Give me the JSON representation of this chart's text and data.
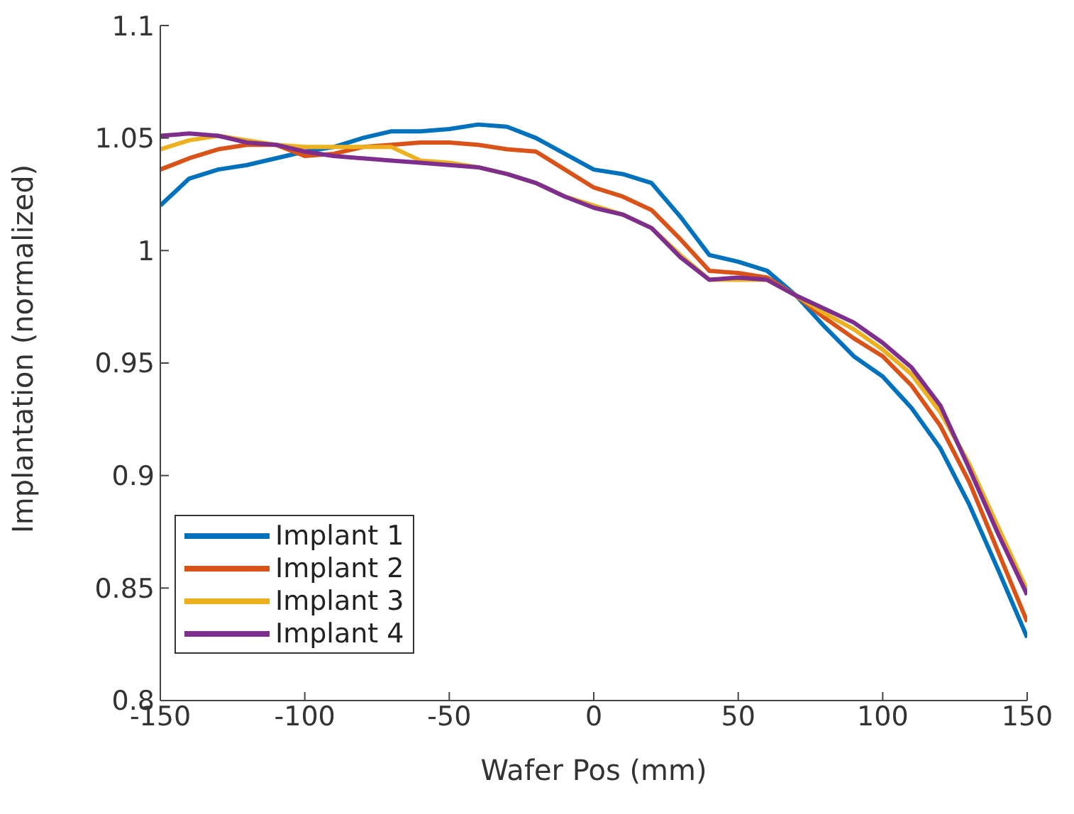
{
  "chart_data": {
    "type": "line",
    "xlabel": "Wafer Pos (mm)",
    "ylabel": "Implantation (normalized)",
    "x": [
      -150,
      -140,
      -130,
      -120,
      -110,
      -100,
      -90,
      -80,
      -70,
      -60,
      -50,
      -40,
      -30,
      -20,
      -10,
      0,
      10,
      20,
      30,
      40,
      50,
      60,
      70,
      80,
      90,
      100,
      110,
      120,
      130,
      140,
      150
    ],
    "series": [
      {
        "name": "Implant 1",
        "color": "#0072bd",
        "values": [
          1.02,
          1.032,
          1.036,
          1.038,
          1.041,
          1.044,
          1.046,
          1.05,
          1.053,
          1.053,
          1.054,
          1.056,
          1.055,
          1.05,
          1.043,
          1.036,
          1.034,
          1.03,
          1.015,
          0.998,
          0.995,
          0.991,
          0.98,
          0.966,
          0.953,
          0.944,
          0.93,
          0.912,
          0.887,
          0.858,
          0.828
        ]
      },
      {
        "name": "Implant 2",
        "color": "#d95319",
        "values": [
          1.036,
          1.041,
          1.045,
          1.047,
          1.047,
          1.042,
          1.043,
          1.046,
          1.047,
          1.048,
          1.048,
          1.047,
          1.045,
          1.044,
          1.036,
          1.028,
          1.024,
          1.018,
          1.005,
          0.991,
          0.99,
          0.988,
          0.98,
          0.97,
          0.961,
          0.953,
          0.94,
          0.922,
          0.897,
          0.866,
          0.835
        ]
      },
      {
        "name": "Implant 3",
        "color": "#edb120",
        "values": [
          1.045,
          1.049,
          1.051,
          1.049,
          1.047,
          1.046,
          1.046,
          1.046,
          1.046,
          1.04,
          1.039,
          1.037,
          1.034,
          1.03,
          1.024,
          1.02,
          1.016,
          1.01,
          0.998,
          0.987,
          0.987,
          0.987,
          0.98,
          0.972,
          0.965,
          0.956,
          0.945,
          0.928,
          0.905,
          0.877,
          0.849
        ]
      },
      {
        "name": "Implant 4",
        "color": "#7e2f8e",
        "values": [
          1.051,
          1.052,
          1.051,
          1.048,
          1.047,
          1.044,
          1.042,
          1.041,
          1.04,
          1.039,
          1.038,
          1.037,
          1.034,
          1.03,
          1.024,
          1.019,
          1.016,
          1.01,
          0.997,
          0.987,
          0.988,
          0.987,
          0.98,
          0.974,
          0.968,
          0.959,
          0.948,
          0.931,
          0.903,
          0.874,
          0.847
        ]
      }
    ],
    "xlim": [
      -150,
      150
    ],
    "xticks": [
      -150,
      -100,
      -50,
      0,
      50,
      100,
      150
    ],
    "ylim": [
      0.8,
      1.1
    ],
    "yticks": [
      0.8,
      0.85,
      0.9,
      0.95,
      1,
      1.05,
      1.1
    ],
    "grid": false,
    "legend": "bottom left",
    "marker": "none",
    "line_style": "solid"
  }
}
